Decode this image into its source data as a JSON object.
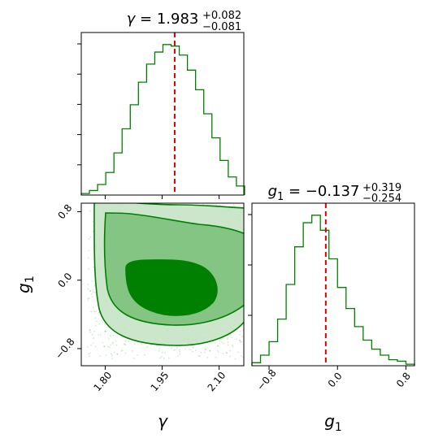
{
  "chart_data": [
    {
      "type": "histogram",
      "panel": "top-left",
      "title": {
        "param": "γ",
        "value": "1.983",
        "err_plus": "+0.082",
        "err_minus": "−0.081"
      },
      "x": [
        1.737,
        1.7585,
        1.78,
        1.8015,
        1.823,
        1.8445,
        1.866,
        1.8875,
        1.909,
        1.9305,
        1.952,
        1.9735,
        1.995,
        2.0165,
        2.038,
        2.0595,
        2.081,
        2.1025,
        2.124,
        2.1455
      ],
      "values": [
        0.01,
        0.03,
        0.07,
        0.15,
        0.28,
        0.44,
        0.6,
        0.75,
        0.87,
        0.95,
        1.0,
        0.99,
        0.93,
        0.83,
        0.7,
        0.54,
        0.38,
        0.23,
        0.12,
        0.06
      ],
      "truth": 1.983,
      "xlim": [
        1.737,
        2.165
      ],
      "ylim": [
        0,
        1.08
      ],
      "xticks": [
        "1.80",
        "1.95",
        "2.10"
      ],
      "xtick_values": [
        1.8,
        1.95,
        2.1
      ],
      "yticks_count": 5,
      "color": "#008000",
      "truth_color": "#e00000"
    },
    {
      "type": "histogram",
      "panel": "bottom-right",
      "title": {
        "param": "g",
        "sub": "1",
        "value": "−0.137",
        "err_plus": "+0.319",
        "err_minus": "−0.254"
      },
      "x": [
        -1.0,
        -0.9,
        -0.8,
        -0.7,
        -0.6,
        -0.5,
        -0.4,
        -0.3,
        -0.2,
        -0.1,
        0.0,
        0.1,
        0.2,
        0.3,
        0.4,
        0.5,
        0.6,
        0.7,
        0.8
      ],
      "values": [
        0.02,
        0.07,
        0.16,
        0.31,
        0.54,
        0.79,
        0.95,
        1.0,
        0.9,
        0.71,
        0.52,
        0.38,
        0.26,
        0.17,
        0.11,
        0.07,
        0.04,
        0.03,
        0.01
      ],
      "truth": -0.137,
      "xlim": [
        -1.0,
        0.9
      ],
      "ylim": [
        0,
        1.08
      ],
      "xticks": [
        "−0.8",
        "0.0",
        "0.8"
      ],
      "xtick_values": [
        -0.8,
        0.0,
        0.8
      ],
      "yticks_count": 3,
      "xlabel": {
        "param": "g",
        "sub": "1"
      },
      "color": "#008000",
      "truth_color": "#e00000"
    },
    {
      "type": "contour",
      "panel": "bottom-left",
      "x_param": "γ",
      "y_param": {
        "param": "g",
        "sub": "1"
      },
      "xlim": [
        1.737,
        2.165
      ],
      "ylim": [
        -1.0,
        0.9
      ],
      "xticks": [
        "1.80",
        "1.95",
        "2.10"
      ],
      "xtick_values": [
        1.8,
        1.95,
        2.1
      ],
      "yticks": [
        "−0.8",
        "0.0",
        "0.8"
      ],
      "ytick_values": [
        -0.8,
        0.0,
        0.8
      ],
      "xlabel": "γ",
      "ylabel": {
        "param": "g",
        "sub": "1"
      },
      "center": [
        1.983,
        -0.137
      ],
      "color": "#008000",
      "fill_levels": [
        "#c5e3c5",
        "#84c584",
        "#008000"
      ]
    }
  ]
}
